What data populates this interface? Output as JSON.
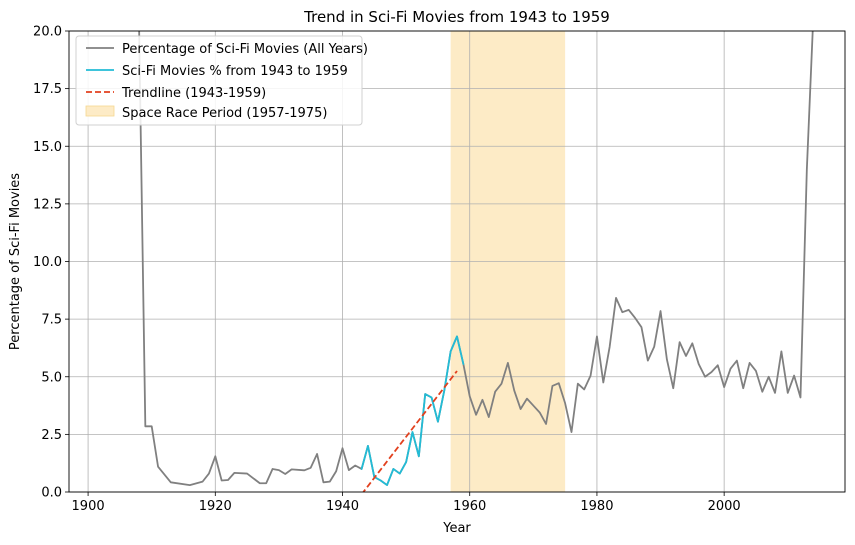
{
  "chart_data": {
    "type": "line",
    "title": "Trend in Sci-Fi Movies from 1943 to 1959",
    "xlabel": "Year",
    "ylabel": "Percentage of Sci-Fi Movies",
    "xlim": [
      1897,
      2019
    ],
    "ylim": [
      0,
      20
    ],
    "xticks": [
      1900,
      1920,
      1940,
      1960,
      1980,
      2000
    ],
    "xtick_labels": [
      "1900",
      "1920",
      "1940",
      "1960",
      "1980",
      "2000"
    ],
    "yticks": [
      0,
      2.5,
      5,
      7.5,
      10,
      12.5,
      15,
      17.5,
      20
    ],
    "ytick_labels": [
      "0.0",
      "2.5",
      "5.0",
      "7.5",
      "10.0",
      "12.5",
      "15.0",
      "17.5",
      "20.0"
    ],
    "grid": true,
    "legend_position": "top-left",
    "series": [
      {
        "name": "Percentage of Sci-Fi Movies (All Years)",
        "color": "#808080",
        "style": "solid",
        "x": [
          1908,
          1909,
          1910,
          1911,
          1913,
          1916,
          1918,
          1919,
          1920,
          1921,
          1922,
          1923,
          1925,
          1927,
          1928,
          1929,
          1930,
          1931,
          1932,
          1934,
          1935,
          1936,
          1937,
          1938,
          1939,
          1940,
          1941,
          1942,
          1943,
          1944,
          1945,
          1946,
          1947,
          1948,
          1949,
          1950,
          1951,
          1952,
          1953,
          1954,
          1955,
          1956,
          1957,
          1958,
          1959,
          1960,
          1961,
          1962,
          1963,
          1964,
          1965,
          1966,
          1967,
          1968,
          1969,
          1970,
          1971,
          1972,
          1973,
          1974,
          1975,
          1976,
          1977,
          1978,
          1979,
          1980,
          1981,
          1982,
          1983,
          1984,
          1985,
          1986,
          1987,
          1988,
          1989,
          1990,
          1991,
          1992,
          1993,
          1994,
          1995,
          1996,
          1997,
          1998,
          1999,
          2000,
          2001,
          2002,
          2003,
          2004,
          2005,
          2006,
          2007,
          2008,
          2009,
          2010,
          2011,
          2012,
          2013,
          2014
        ],
        "y": [
          20.5,
          2.85,
          2.85,
          1.1,
          0.42,
          0.3,
          0.45,
          0.8,
          1.55,
          0.5,
          0.52,
          0.83,
          0.8,
          0.38,
          0.38,
          1.0,
          0.95,
          0.78,
          0.98,
          0.94,
          1.05,
          1.65,
          0.42,
          0.45,
          0.9,
          1.9,
          0.95,
          1.15,
          1.0,
          2.0,
          0.65,
          0.5,
          0.3,
          1.0,
          0.8,
          1.3,
          2.6,
          1.55,
          4.25,
          4.1,
          3.05,
          4.4,
          6.1,
          6.75,
          5.55,
          4.15,
          3.35,
          4.0,
          3.25,
          4.35,
          4.7,
          5.6,
          4.4,
          3.6,
          4.05,
          3.75,
          3.45,
          2.95,
          4.6,
          4.72,
          3.85,
          2.6,
          4.7,
          4.45,
          5.05,
          6.75,
          4.75,
          6.3,
          8.42,
          7.8,
          7.9,
          7.55,
          7.15,
          5.7,
          6.3,
          7.85,
          5.75,
          4.5,
          6.5,
          5.9,
          6.45,
          5.55,
          5.0,
          5.2,
          5.5,
          4.55,
          5.35,
          5.7,
          4.5,
          5.6,
          5.25,
          4.35,
          5.0,
          4.3,
          6.1,
          4.3,
          5.05,
          4.1,
          14.0,
          20.5
        ]
      },
      {
        "name": "Sci-Fi Movies % from 1943 to 1959",
        "color": "#22bcd6",
        "style": "solid",
        "x": [
          1943,
          1944,
          1945,
          1946,
          1947,
          1948,
          1949,
          1950,
          1951,
          1952,
          1953,
          1954,
          1955,
          1956,
          1957,
          1958,
          1959
        ],
        "y": [
          1.0,
          2.0,
          0.65,
          0.5,
          0.3,
          1.0,
          0.8,
          1.3,
          2.6,
          1.55,
          4.25,
          4.1,
          3.05,
          4.4,
          6.1,
          6.75,
          5.55
        ]
      },
      {
        "name": "Trendline (1943-1959)",
        "color": "#e2401e",
        "style": "dashed",
        "x": [
          1943,
          1958
        ],
        "y": [
          -0.1,
          5.25
        ]
      }
    ],
    "span": {
      "name": "Space Race Period (1957-1975)",
      "x_start": 1957,
      "x_end": 1975,
      "color": "#fdebc6"
    }
  }
}
